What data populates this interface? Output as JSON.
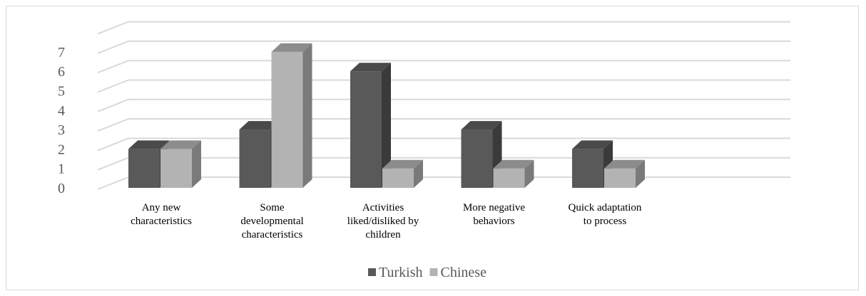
{
  "chart_data": {
    "type": "bar",
    "categories": [
      [
        "Any new",
        "characteristics"
      ],
      [
        "Some",
        "developmental",
        "characteristics"
      ],
      [
        "Activities",
        "liked/disliked by",
        "children"
      ],
      [
        "More negative",
        "behaviors"
      ],
      [
        "Quick adaptation",
        "to process"
      ]
    ],
    "series": [
      {
        "name": "Turkish",
        "values": [
          2,
          3,
          6,
          3,
          2
        ]
      },
      {
        "name": "Chinese",
        "values": [
          2,
          7,
          1,
          1,
          1
        ]
      }
    ],
    "yticks": [
      0,
      1,
      2,
      3,
      4,
      5,
      6,
      7
    ],
    "ylim": [
      0,
      7
    ],
    "grid": true,
    "legend_position": "bottom",
    "colors": {
      "Turkish": {
        "front": "#595959",
        "side": "#3a3a3a",
        "top": "#4a4a4a"
      },
      "Chinese": {
        "front": "#b3b3b3",
        "side": "#7a7a7a",
        "top": "#8c8c8c"
      },
      "grid": "#d9d9d9"
    }
  }
}
